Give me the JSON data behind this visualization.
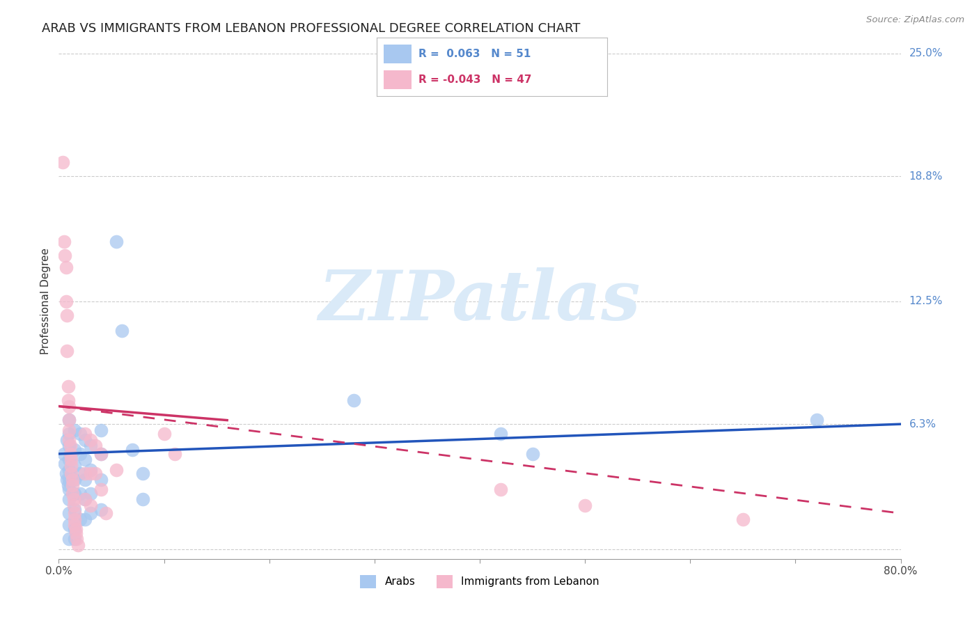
{
  "title": "ARAB VS IMMIGRANTS FROM LEBANON PROFESSIONAL DEGREE CORRELATION CHART",
  "source": "Source: ZipAtlas.com",
  "ylabel": "Professional Degree",
  "xlim": [
    0.0,
    0.8
  ],
  "ylim": [
    -0.005,
    0.255
  ],
  "yticks": [
    0.0,
    0.063,
    0.125,
    0.188,
    0.25
  ],
  "ytick_labels": [
    "",
    "6.3%",
    "12.5%",
    "18.8%",
    "25.0%"
  ],
  "xticks": [
    0.0,
    0.1,
    0.2,
    0.3,
    0.4,
    0.5,
    0.6,
    0.7,
    0.8
  ],
  "xtick_labels": [
    "0.0%",
    "",
    "",
    "",
    "",
    "",
    "",
    "",
    "80.0%"
  ],
  "arab_color": "#a8c8f0",
  "leb_color": "#f5b8cc",
  "arab_line_color": "#2255bb",
  "leb_line_color": "#cc3366",
  "watermark_color": "#daeaf8",
  "background_color": "#ffffff",
  "grid_color": "#cccccc",
  "right_label_color": "#5588cc",
  "title_color": "#222222",
  "source_color": "#888888",
  "arab_scatter": [
    [
      0.005,
      0.048
    ],
    [
      0.006,
      0.043
    ],
    [
      0.007,
      0.038
    ],
    [
      0.008,
      0.055
    ],
    [
      0.008,
      0.035
    ],
    [
      0.009,
      0.032
    ],
    [
      0.01,
      0.065
    ],
    [
      0.01,
      0.058
    ],
    [
      0.01,
      0.052
    ],
    [
      0.01,
      0.045
    ],
    [
      0.01,
      0.04
    ],
    [
      0.01,
      0.035
    ],
    [
      0.01,
      0.03
    ],
    [
      0.01,
      0.025
    ],
    [
      0.01,
      0.018
    ],
    [
      0.01,
      0.012
    ],
    [
      0.01,
      0.005
    ],
    [
      0.015,
      0.06
    ],
    [
      0.015,
      0.05
    ],
    [
      0.015,
      0.042
    ],
    [
      0.015,
      0.035
    ],
    [
      0.015,
      0.028
    ],
    [
      0.015,
      0.02
    ],
    [
      0.015,
      0.01
    ],
    [
      0.015,
      0.005
    ],
    [
      0.02,
      0.058
    ],
    [
      0.02,
      0.048
    ],
    [
      0.02,
      0.038
    ],
    [
      0.02,
      0.028
    ],
    [
      0.02,
      0.015
    ],
    [
      0.025,
      0.055
    ],
    [
      0.025,
      0.045
    ],
    [
      0.025,
      0.035
    ],
    [
      0.025,
      0.025
    ],
    [
      0.025,
      0.015
    ],
    [
      0.03,
      0.052
    ],
    [
      0.03,
      0.04
    ],
    [
      0.03,
      0.028
    ],
    [
      0.03,
      0.018
    ],
    [
      0.04,
      0.06
    ],
    [
      0.04,
      0.048
    ],
    [
      0.04,
      0.035
    ],
    [
      0.04,
      0.02
    ],
    [
      0.055,
      0.155
    ],
    [
      0.06,
      0.11
    ],
    [
      0.07,
      0.05
    ],
    [
      0.08,
      0.038
    ],
    [
      0.08,
      0.025
    ],
    [
      0.28,
      0.075
    ],
    [
      0.42,
      0.058
    ],
    [
      0.45,
      0.048
    ],
    [
      0.72,
      0.065
    ]
  ],
  "leb_scatter": [
    [
      0.004,
      0.195
    ],
    [
      0.005,
      0.155
    ],
    [
      0.006,
      0.148
    ],
    [
      0.007,
      0.142
    ],
    [
      0.007,
      0.125
    ],
    [
      0.008,
      0.118
    ],
    [
      0.008,
      0.1
    ],
    [
      0.009,
      0.082
    ],
    [
      0.009,
      0.075
    ],
    [
      0.01,
      0.072
    ],
    [
      0.01,
      0.065
    ],
    [
      0.01,
      0.06
    ],
    [
      0.01,
      0.055
    ],
    [
      0.011,
      0.052
    ],
    [
      0.011,
      0.048
    ],
    [
      0.012,
      0.045
    ],
    [
      0.012,
      0.042
    ],
    [
      0.012,
      0.038
    ],
    [
      0.013,
      0.035
    ],
    [
      0.013,
      0.032
    ],
    [
      0.013,
      0.028
    ],
    [
      0.014,
      0.025
    ],
    [
      0.014,
      0.022
    ],
    [
      0.015,
      0.018
    ],
    [
      0.015,
      0.015
    ],
    [
      0.015,
      0.012
    ],
    [
      0.016,
      0.01
    ],
    [
      0.016,
      0.008
    ],
    [
      0.017,
      0.005
    ],
    [
      0.018,
      0.002
    ],
    [
      0.025,
      0.058
    ],
    [
      0.025,
      0.038
    ],
    [
      0.025,
      0.025
    ],
    [
      0.03,
      0.055
    ],
    [
      0.03,
      0.038
    ],
    [
      0.03,
      0.022
    ],
    [
      0.035,
      0.052
    ],
    [
      0.035,
      0.038
    ],
    [
      0.04,
      0.048
    ],
    [
      0.04,
      0.03
    ],
    [
      0.045,
      0.018
    ],
    [
      0.055,
      0.04
    ],
    [
      0.1,
      0.058
    ],
    [
      0.11,
      0.048
    ],
    [
      0.42,
      0.03
    ],
    [
      0.5,
      0.022
    ],
    [
      0.65,
      0.015
    ]
  ],
  "arab_line": {
    "x0": 0.0,
    "y0": 0.048,
    "x1": 0.8,
    "y1": 0.063
  },
  "leb_line": {
    "x0": 0.0,
    "y0": 0.072,
    "x1": 0.8,
    "y1": 0.028
  },
  "leb_dash_line": {
    "x0": 0.07,
    "y0": 0.062,
    "x1": 0.8,
    "y1": 0.018
  }
}
